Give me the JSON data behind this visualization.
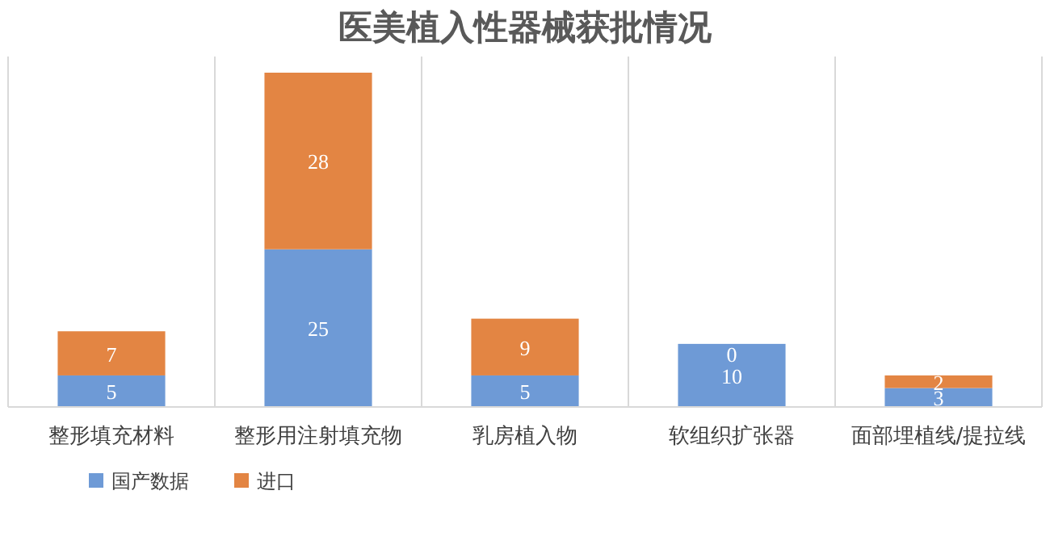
{
  "chart_data": {
    "type": "bar",
    "title": "医美植入性器械获批情况",
    "categories": [
      "整形填充材料",
      "整形用注射填充物",
      "乳房植入物",
      "软组织扩张器",
      "面部埋植线/提拉线"
    ],
    "stacked": true,
    "data_labels": true,
    "grid": "x",
    "legend": "bottom left",
    "series": [
      {
        "name": "国产数据",
        "color": "#6e9ad6",
        "values": [
          5,
          25,
          5,
          10,
          3
        ]
      },
      {
        "name": "进口",
        "color": "#e38543",
        "values": [
          7,
          28,
          9,
          0,
          2
        ]
      }
    ]
  }
}
